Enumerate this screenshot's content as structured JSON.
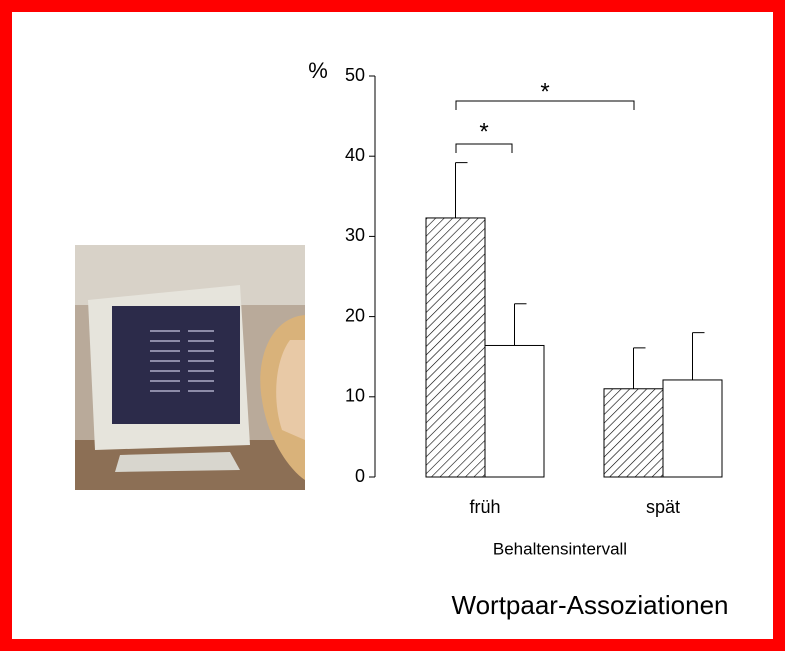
{
  "chart_data": {
    "type": "bar",
    "title": "Wortpaar-Assoziationen",
    "y_label": "%",
    "x_label": "Behaltensintervall",
    "categories": [
      "früh",
      "spät"
    ],
    "series": [
      {
        "color": "#000000",
        "hatch": true,
        "values": [
          32.3,
          11.0
        ],
        "errors": [
          6.9,
          5.1
        ]
      },
      {
        "color": "#ffffff",
        "hatch": false,
        "values": [
          16.4,
          12.1
        ],
        "errors": [
          5.2,
          5.9
        ]
      }
    ],
    "ylim": [
      0,
      50
    ],
    "yticks": [
      0,
      10,
      20,
      30,
      40,
      50
    ],
    "annotations": [
      {
        "text": "*"
      },
      {
        "text": "*"
      }
    ]
  }
}
